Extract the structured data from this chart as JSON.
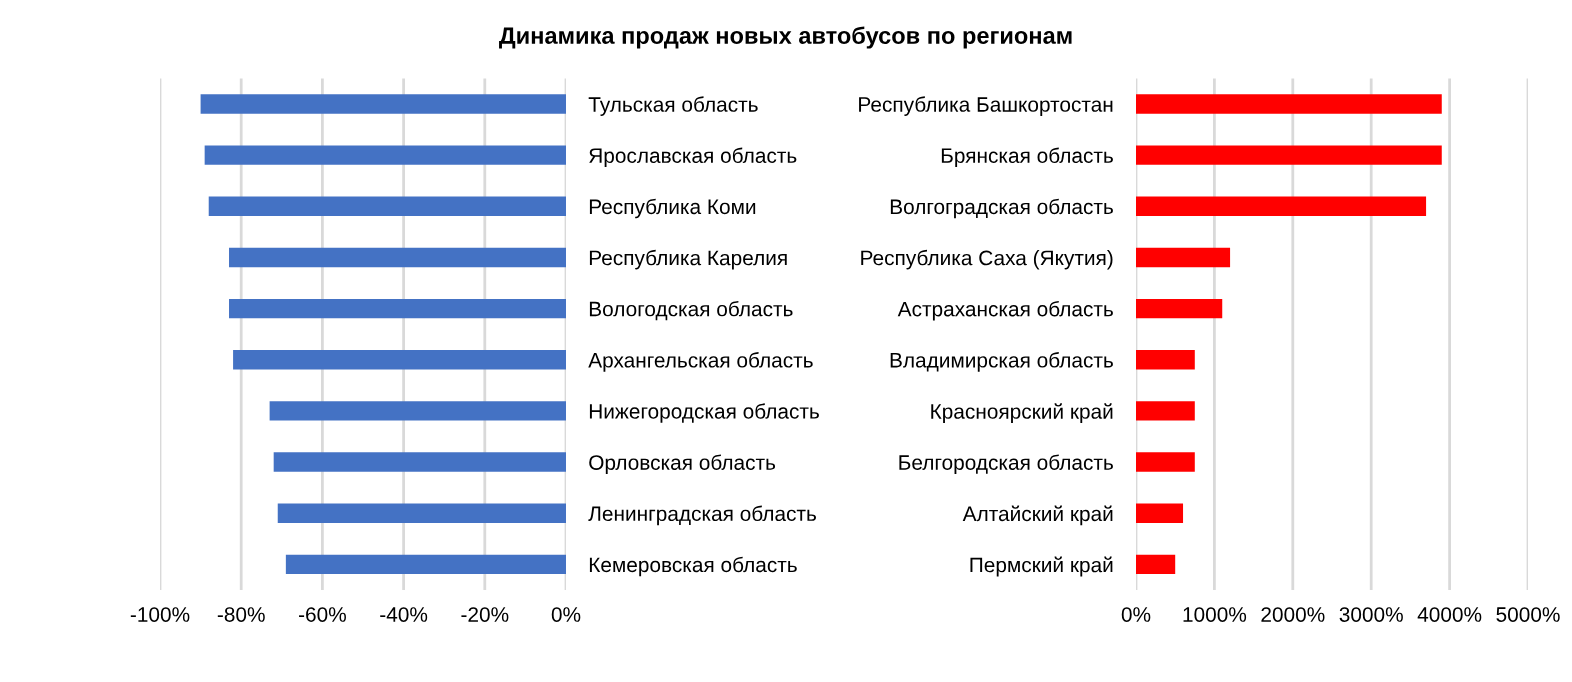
{
  "chart_data": [
    {
      "type": "bar",
      "orientation": "horizontal",
      "title": "Динамика продаж новых автобусов по регионам",
      "categories": [
        "Тульская область",
        "Ярославская область",
        "Республика Коми",
        "Республика Карелия",
        "Вологодская область",
        "Архангельская область",
        "Нижегородская область",
        "Орловская область",
        "Ленинградская область",
        "Кемеровская область"
      ],
      "values": [
        -90,
        -89,
        -88,
        -83,
        -83,
        -82,
        -73,
        -72,
        -71,
        -69
      ],
      "color": "#4472c4",
      "xlim": [
        -100,
        0
      ],
      "xticks": [
        {
          "value": -100,
          "label": "-100%"
        },
        {
          "value": -80,
          "label": "-80%"
        },
        {
          "value": -60,
          "label": "-60%"
        },
        {
          "value": -40,
          "label": "-40%"
        },
        {
          "value": -20,
          "label": "-20%"
        },
        {
          "value": 0,
          "label": "0%"
        }
      ],
      "grid": "x"
    },
    {
      "type": "bar",
      "orientation": "horizontal",
      "categories": [
        "Республика Башкортостан",
        "Брянская область",
        "Волгоградская область",
        "Республика Саха (Якутия)",
        "Астраханская область",
        "Владимирская область",
        "Красноярский край",
        "Белгородская область",
        "Алтайский край",
        "Пермский край"
      ],
      "values": [
        3900,
        3900,
        3700,
        1200,
        1100,
        750,
        750,
        750,
        600,
        500
      ],
      "color": "#ff0000",
      "xlim": [
        0,
        5000
      ],
      "xticks": [
        {
          "value": 0,
          "label": "0%"
        },
        {
          "value": 1000,
          "label": "1000%"
        },
        {
          "value": 2000,
          "label": "2000%"
        },
        {
          "value": 3000,
          "label": "3000%"
        },
        {
          "value": 4000,
          "label": "4000%"
        },
        {
          "value": 5000,
          "label": "5000%"
        }
      ],
      "grid": "x"
    }
  ]
}
